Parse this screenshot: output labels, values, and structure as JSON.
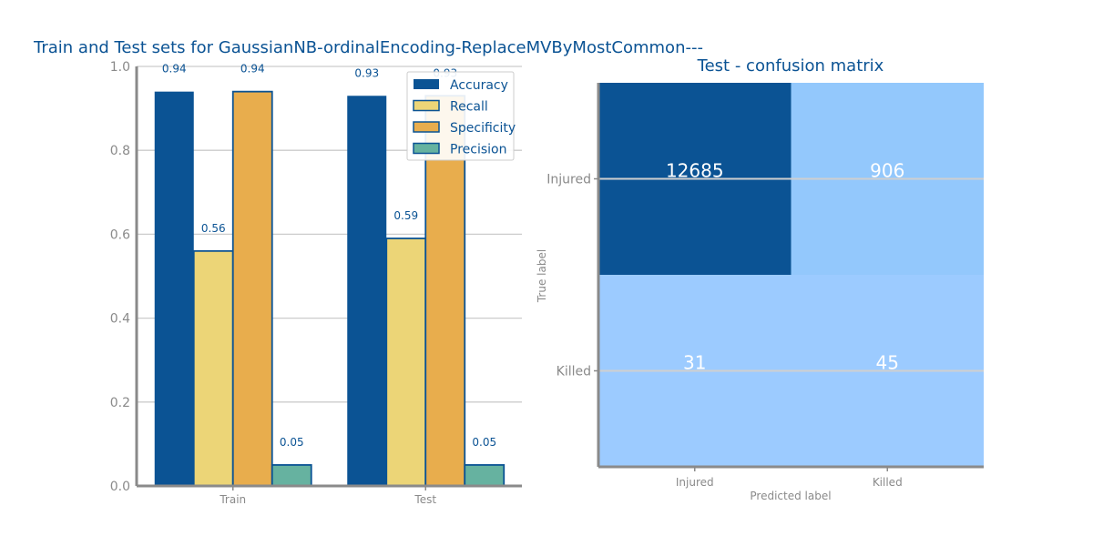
{
  "chart_data": [
    {
      "type": "bar",
      "title": "Train and Test sets for GaussianNB-ordinalEncoding-ReplaceMVByMostCommon---",
      "categories": [
        "Train",
        "Test"
      ],
      "ylim": [
        0,
        1.0
      ],
      "yticks": [
        "0.0",
        "0.2",
        "0.4",
        "0.6",
        "0.8",
        "1.0"
      ],
      "grid": true,
      "legend_position": "top-right",
      "series": [
        {
          "name": "Accuracy",
          "values": [
            0.94,
            0.93
          ],
          "labels": [
            "0.94",
            "0.93"
          ],
          "color": "#0b5394"
        },
        {
          "name": "Recall",
          "values": [
            0.56,
            0.59
          ],
          "labels": [
            "0.56",
            "0.59"
          ],
          "color": "#ecd577"
        },
        {
          "name": "Specificity",
          "values": [
            0.94,
            0.93
          ],
          "labels": [
            "0.94",
            "0.93"
          ],
          "color": "#e8ad4d"
        },
        {
          "name": "Precision",
          "values": [
            0.05,
            0.05
          ],
          "labels": [
            "0.05",
            "0.05"
          ],
          "color": "#66b2a0"
        }
      ]
    },
    {
      "type": "heatmap",
      "title": "Test - confusion matrix",
      "xlabel": "Predicted label",
      "ylabel": "True label",
      "x_categories": [
        "Injured",
        "Killed"
      ],
      "y_categories": [
        "Injured",
        "Killed"
      ],
      "values": [
        [
          12685,
          906
        ],
        [
          31,
          45
        ]
      ],
      "colors": {
        "high": "#0b5394",
        "mid": "#93c8fc",
        "low": "#9ccbff"
      }
    }
  ]
}
